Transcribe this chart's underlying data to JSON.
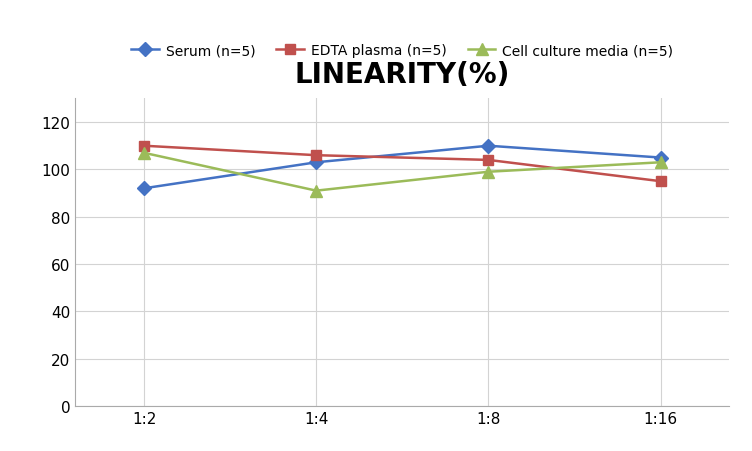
{
  "title": "LINEARITY(%)",
  "title_fontsize": 20,
  "title_fontweight": "bold",
  "x_labels": [
    "1:2",
    "1:4",
    "1:8",
    "1:16"
  ],
  "x_positions": [
    0,
    1,
    2,
    3
  ],
  "series": [
    {
      "label": "Serum (n=5)",
      "color": "#4472C4",
      "marker": "D",
      "markersize": 7,
      "values": [
        92,
        103,
        110,
        105
      ]
    },
    {
      "label": "EDTA plasma (n=5)",
      "color": "#C0504D",
      "marker": "s",
      "markersize": 7,
      "values": [
        110,
        106,
        104,
        95
      ]
    },
    {
      "label": "Cell culture media (n=5)",
      "color": "#9BBB59",
      "marker": "^",
      "markersize": 8,
      "values": [
        107,
        91,
        99,
        103
      ]
    }
  ],
  "ylim": [
    0,
    130
  ],
  "yticks": [
    0,
    20,
    40,
    60,
    80,
    100,
    120
  ],
  "grid_color": "#D3D3D3",
  "background_color": "#FFFFFF",
  "legend_fontsize": 10,
  "tick_fontsize": 11,
  "linewidth": 1.8
}
